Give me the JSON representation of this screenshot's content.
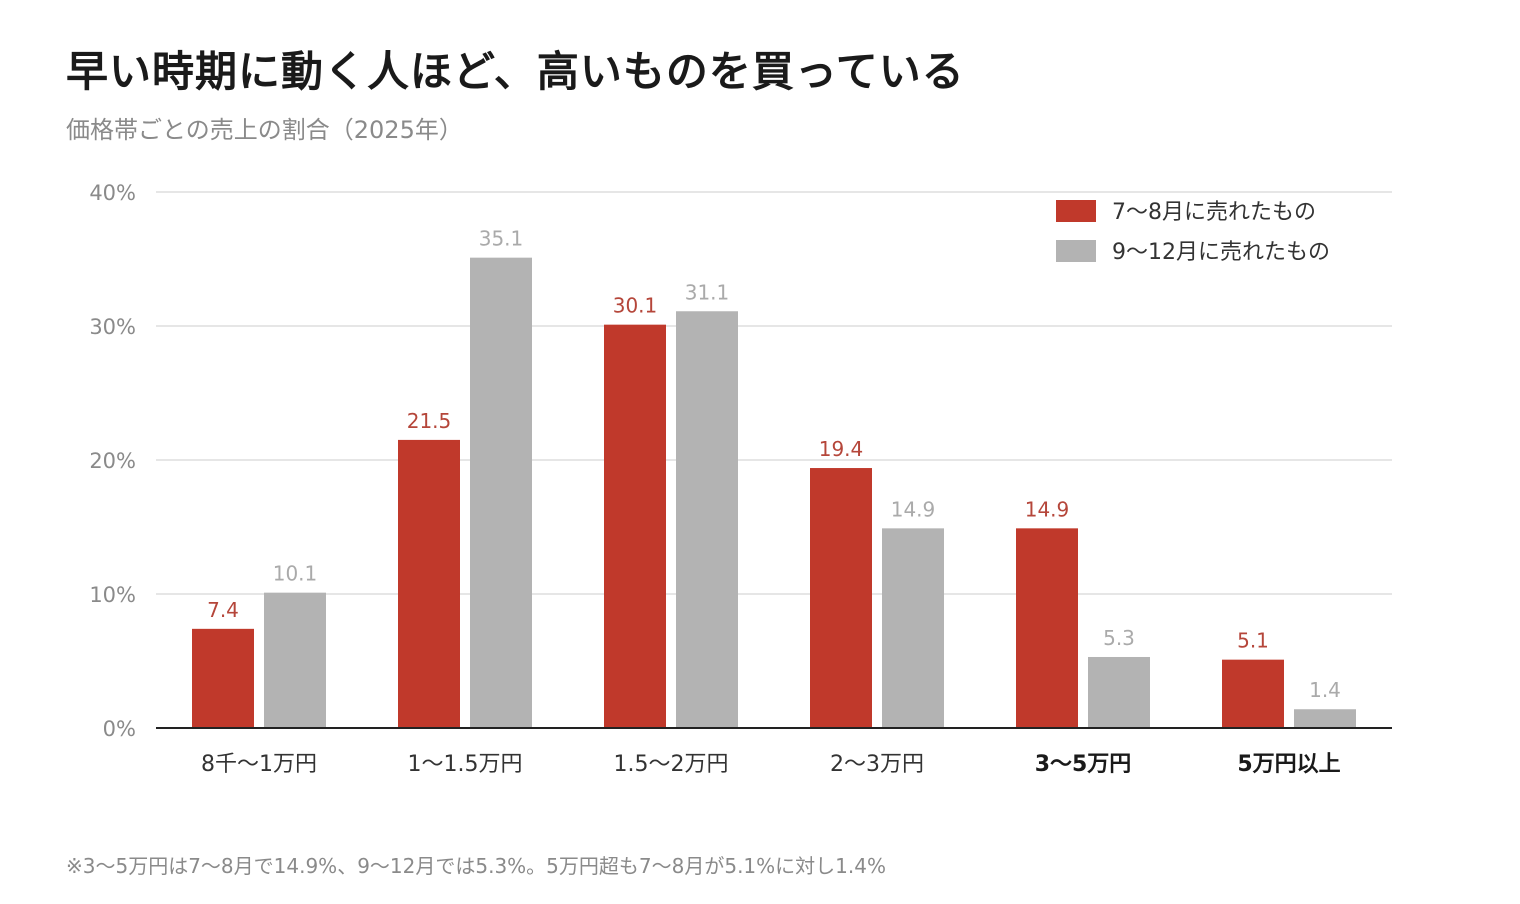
{
  "title": "早い時期に動く人ほど、高いものを買っている",
  "subtitle": "価格帯ごとの売上の割合（2025年）",
  "note": "※3〜5万円は7〜8月で14.9%、9〜12月では5.3%。5万円超も7〜8月が5.1%に対し1.4%",
  "chart_data": {
    "type": "bar",
    "categories": [
      "8千〜1万円",
      "1〜1.5万円",
      "1.5〜2万円",
      "2〜3万円",
      "3〜5万円",
      "5万円以上"
    ],
    "bold_categories": [
      "3〜5万円",
      "5万円以上"
    ],
    "series": [
      {
        "name": "7〜8月に売れたもの",
        "color": "#c0392b",
        "label_color": "#b5463a",
        "values": [
          7.4,
          21.5,
          30.1,
          19.4,
          14.9,
          5.1
        ]
      },
      {
        "name": "9〜12月に売れたもの",
        "color": "#b3b3b3",
        "label_color": "#aaaaaa",
        "values": [
          10.1,
          35.1,
          31.1,
          14.9,
          5.3,
          1.4
        ]
      }
    ],
    "value_labels": [
      [
        "7.4",
        "21.5",
        "30.1",
        "19.4",
        "14.9",
        "5.1"
      ],
      [
        "10.1",
        "35.1",
        "31.1",
        "14.9",
        "5.3",
        "1.4"
      ]
    ],
    "yticks": [
      0,
      10,
      20,
      30,
      40
    ],
    "ytick_labels": [
      "0%",
      "10%",
      "20%",
      "30%",
      "40%"
    ],
    "ylim": [
      0,
      40
    ],
    "grid": true,
    "legend_position": "top-right"
  }
}
